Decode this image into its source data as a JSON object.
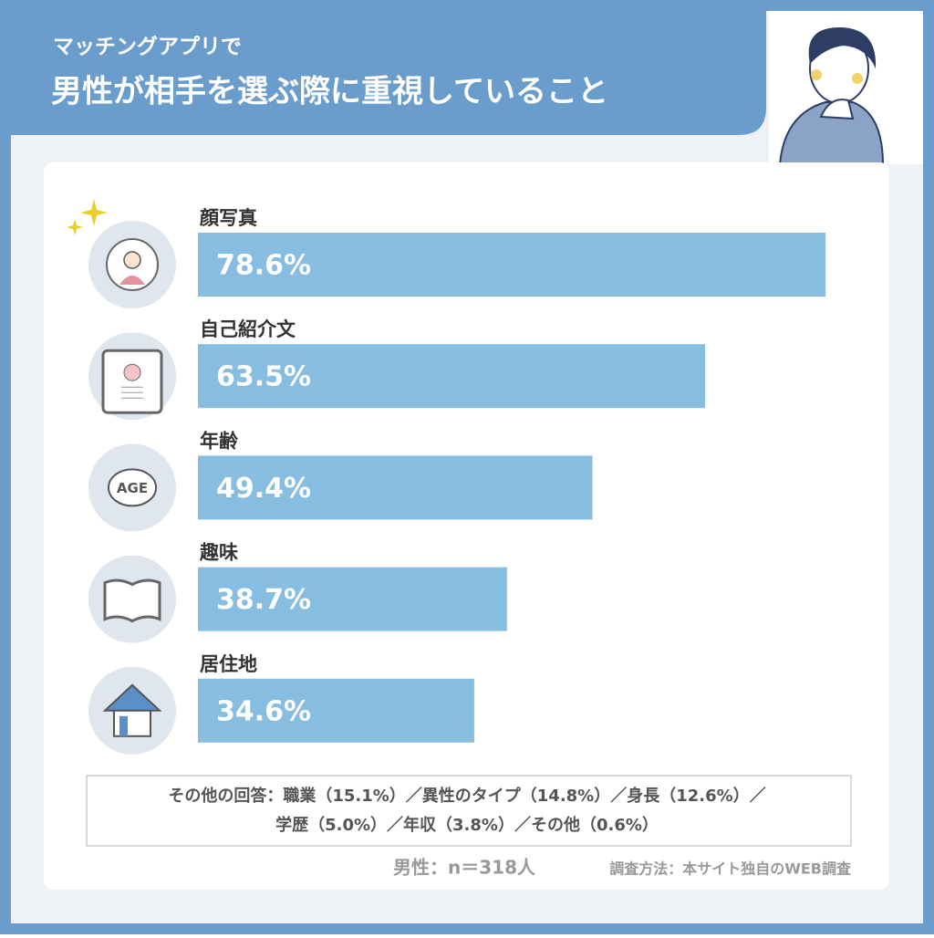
{
  "chart_data": {
    "type": "bar",
    "orientation": "horizontal",
    "subtitle": "マッチングアプリで",
    "title": "男性が相手を選ぶ際に重視していること",
    "categories": [
      "顔写真",
      "自己紹介文",
      "年齢",
      "趣味",
      "居住地"
    ],
    "values": [
      78.6,
      63.5,
      49.4,
      38.7,
      34.6
    ],
    "value_labels": [
      "78.6%",
      "63.5%",
      "49.4%",
      "38.7%",
      "34.6%"
    ],
    "color": "#86bde0",
    "icon_texts": {
      "age": "AGE"
    },
    "other_answers": [
      "その他の回答：職業（15.1%）／異性のタイプ（14.8%）／身長（12.6%）／",
      "学歴（5.0%）／年収（3.8%）／その他（0.6%）"
    ],
    "sample": "男性：n＝318人",
    "method": "調査方法：本サイト独自のWEB調査"
  }
}
